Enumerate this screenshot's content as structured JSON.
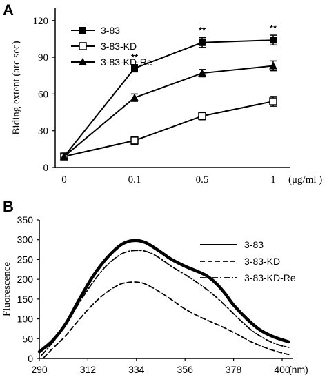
{
  "panels": [
    {
      "letter": "A",
      "chart_data": {
        "type": "line",
        "categories": [
          "0",
          "0.1",
          "0.5",
          "1"
        ],
        "xunit": "(μg/ml )",
        "ylabel": "Biding extent (arc sec)",
        "yticks": [
          "0",
          "30",
          "60",
          "90",
          "120"
        ],
        "ylim": [
          0,
          130
        ],
        "series": [
          {
            "name": "3-83",
            "marker": "square-filled",
            "values": [
              9,
              81,
              102,
              104
            ],
            "errors": [
              2,
              3,
              4,
              4
            ]
          },
          {
            "name": "3-83-KD",
            "marker": "square-open",
            "values": [
              9,
              22,
              42,
              54
            ],
            "errors": [
              2,
              3,
              3,
              4
            ]
          },
          {
            "name": "3-83-KD-Re",
            "marker": "triangle-filled",
            "values": [
              9,
              57,
              77,
              83
            ],
            "errors": [
              2,
              3,
              3,
              4
            ]
          }
        ],
        "annotations": [
          "**",
          "**",
          "**"
        ],
        "annotation_x": [
          "0.1",
          "0.5",
          "1"
        ]
      }
    },
    {
      "letter": "B",
      "chart_data": {
        "type": "line",
        "ylabel": "Fluorescence",
        "xunit": "(nm)",
        "xticks": [
          "290",
          "312",
          "334",
          "356",
          "378",
          "400"
        ],
        "yticks": [
          "0",
          "50",
          "100",
          "150",
          "200",
          "250",
          "300",
          "350"
        ],
        "xlim": [
          290,
          405
        ],
        "ylim": [
          0,
          350
        ],
        "series": [
          {
            "name": "3-83",
            "style": "solid-thick",
            "x": [
              290,
              296,
              302,
              308,
              314,
              320,
              326,
              330,
              334,
              338,
              342,
              346,
              350,
              356,
              362,
              366,
              370,
              374,
              378,
              384,
              390,
              396,
              403
            ],
            "y": [
              17,
              45,
              88,
              148,
              205,
              250,
              283,
              295,
              298,
              293,
              280,
              265,
              250,
              233,
              219,
              208,
              190,
              165,
              135,
              100,
              72,
              55,
              42
            ]
          },
          {
            "name": "3-83-KD",
            "style": "dashed",
            "x": [
              292,
              296,
              302,
              308,
              314,
              320,
              326,
              330,
              334,
              338,
              344,
              350,
              356,
              362,
              368,
              374,
              380,
              386,
              392,
              398,
              403
            ],
            "y": [
              2,
              25,
              58,
              98,
              135,
              165,
              186,
              192,
              193,
              188,
              170,
              148,
              125,
              107,
              92,
              77,
              60,
              42,
              28,
              17,
              10
            ]
          },
          {
            "name": "3-83-KD-Re",
            "style": "dash-dot",
            "x": [
              291,
              296,
              302,
              308,
              314,
              320,
              326,
              330,
              334,
              338,
              342,
              346,
              350,
              356,
              362,
              368,
              374,
              380,
              386,
              392,
              398,
              403
            ],
            "y": [
              8,
              40,
              85,
              140,
              190,
              232,
              260,
              270,
              273,
              271,
              262,
              248,
              232,
              212,
              190,
              165,
              135,
              102,
              72,
              50,
              35,
              28
            ]
          }
        ]
      }
    }
  ]
}
